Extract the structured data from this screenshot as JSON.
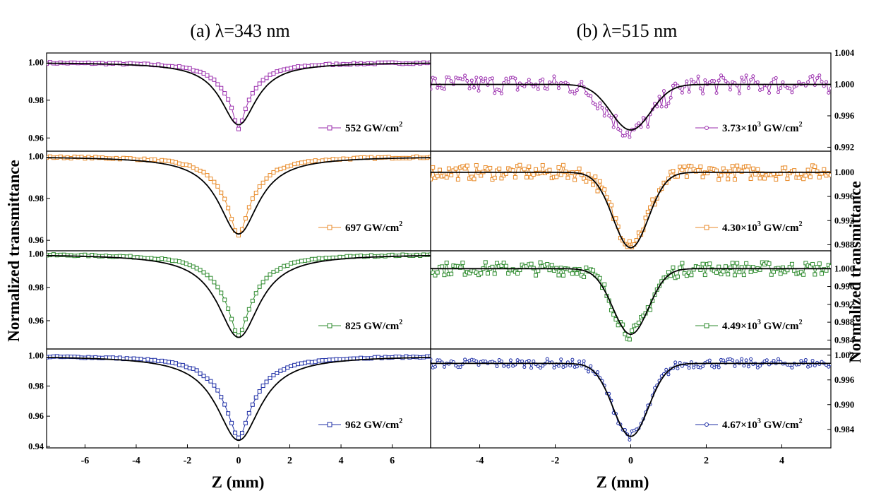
{
  "chart_data": [
    {
      "type": "line",
      "title": "(a) λ=343 nm",
      "xlabel": "Z (mm)",
      "ylabel": "Normalized transmittance",
      "xlim": [
        -7.5,
        7.5
      ],
      "xticks": [
        "-6",
        "-4",
        "-2",
        "0",
        "2",
        "4",
        "6"
      ],
      "panels": [
        {
          "series": [
            {
              "name": "552 GW/cm",
              "sup": "2",
              "color": "#9b2fae",
              "marker": "square",
              "z0": 0.85,
              "min": 0.965,
              "width": 0.36
            },
            {
              "name": "",
              "color": "#000000",
              "marker": "none",
              "z0": 0.85,
              "min": 0.967,
              "width": 0.56
            }
          ],
          "ylim": [
            0.953,
            1.005
          ],
          "yticks": [
            "0.96",
            "0.98",
            "1.00"
          ]
        },
        {
          "series": [
            {
              "name": "697 GW/cm",
              "sup": "2",
              "color": "#e88a28",
              "marker": "square",
              "z0": 0.95,
              "min": 0.962,
              "width": 0.5
            },
            {
              "name": "",
              "color": "#000000",
              "marker": "none",
              "z0": 0.95,
              "min": 0.963,
              "width": 0.72
            }
          ],
          "ylim": [
            0.955,
            1.0025
          ],
          "yticks": [
            "0.96",
            "0.98",
            "1.00"
          ]
        },
        {
          "series": [
            {
              "name": "825 GW/cm",
              "sup": "2",
              "color": "#2e8b2e",
              "marker": "square",
              "z0": 1.0,
              "min": 0.951,
              "width": 0.55
            },
            {
              "name": "",
              "color": "#000000",
              "marker": "none",
              "z0": 1.0,
              "min": 0.95,
              "width": 0.78
            }
          ],
          "ylim": [
            0.943,
            1.002
          ],
          "yticks": [
            "0.96",
            "0.98",
            "1.00"
          ]
        },
        {
          "series": [
            {
              "name": "962 GW/cm",
              "sup": "2",
              "color": "#1f2fa6",
              "marker": "square",
              "z0": 1.05,
              "min": 0.946,
              "width": 0.6
            },
            {
              "name": "",
              "color": "#000000",
              "marker": "none",
              "z0": 1.05,
              "min": 0.944,
              "width": 0.78
            }
          ],
          "ylim": [
            0.939,
            1.0045
          ],
          "yticks": [
            "0.94",
            "0.96",
            "0.98",
            "1.00"
          ]
        }
      ]
    },
    {
      "type": "line",
      "title": "(b) λ=515 nm",
      "xlabel": "Z (mm)",
      "ylabel": "Normalized transmittance",
      "xlim": [
        -5.3,
        5.3
      ],
      "xticks": [
        "-4",
        "-2",
        "0",
        "2",
        "4"
      ],
      "panels": [
        {
          "series": [
            {
              "name": "3.73×10",
              "sup": "3",
              "suffix": " GW/cm",
              "sup2": "2",
              "color": "#9b2fae",
              "marker": "circle",
              "z0": 0.7,
              "min": 0.994,
              "noise": 0.0012
            },
            {
              "name": "",
              "color": "#000000",
              "marker": "none",
              "z0": 0.62,
              "min": 0.9942
            }
          ],
          "ylim": [
            0.9915,
            1.004
          ],
          "yticks": [
            "0.992",
            "0.996",
            "1.000",
            "1.004"
          ]
        },
        {
          "series": [
            {
              "name": "4.30×10",
              "sup": "3",
              "suffix": " GW/cm",
              "sup2": "2",
              "color": "#e88a28",
              "marker": "square",
              "z0": 0.55,
              "min": 0.9885,
              "noise": 0.0012
            },
            {
              "name": "",
              "color": "#000000",
              "marker": "none",
              "z0": 0.55,
              "min": 0.9875
            }
          ],
          "ylim": [
            0.987,
            1.0035
          ],
          "yticks": [
            "0.988",
            "0.992",
            "0.996",
            "1.000"
          ]
        },
        {
          "series": [
            {
              "name": "4.49×10",
              "sup": "3",
              "suffix": " GW/cm",
              "sup2": "2",
              "color": "#2e8b2e",
              "marker": "square",
              "z0": 0.55,
              "min": 0.9855,
              "noise": 0.0015
            },
            {
              "name": "",
              "color": "#000000",
              "marker": "none",
              "z0": 0.55,
              "min": 0.9853
            }
          ],
          "ylim": [
            0.982,
            1.004
          ],
          "yticks": [
            "0.984",
            "0.988",
            "0.992",
            "0.996",
            "1.000"
          ]
        },
        {
          "series": [
            {
              "name": "4.67×10",
              "sup": "3",
              "suffix": " GW/cm",
              "sup2": "2",
              "color": "#1f2fa6",
              "marker": "circle",
              "z0": 0.55,
              "min": 0.9825,
              "noise": 0.0011
            },
            {
              "name": "",
              "color": "#000000",
              "marker": "none",
              "z0": 0.55,
              "min": 0.9823
            }
          ],
          "ylim": [
            0.9795,
            1.0035
          ],
          "yticks": [
            "0.984",
            "0.990",
            "0.996",
            "1.002"
          ]
        }
      ]
    }
  ],
  "labels": {
    "title_a": "(a) λ=343 nm",
    "title_b": "(b) λ=515 nm",
    "xlabel_a": "Z (mm)",
    "xlabel_b": "Z (mm)",
    "ylabel_left": "Normalized transmittance",
    "ylabel_right": "Normalized transmittance"
  }
}
